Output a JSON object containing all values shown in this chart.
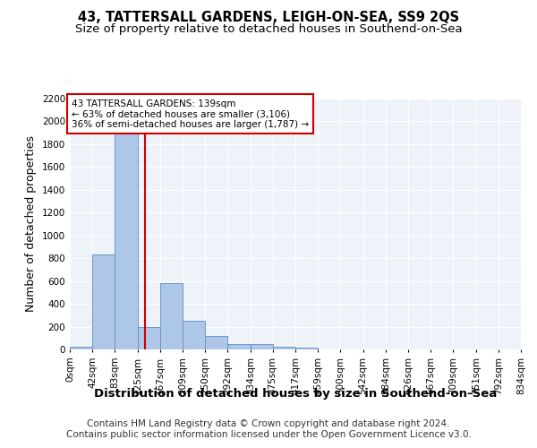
{
  "title": "43, TATTERSALL GARDENS, LEIGH-ON-SEA, SS9 2QS",
  "subtitle": "Size of property relative to detached houses in Southend-on-Sea",
  "xlabel": "Distribution of detached houses by size in Southend-on-Sea",
  "ylabel": "Number of detached properties",
  "footer_line1": "Contains HM Land Registry data © Crown copyright and database right 2024.",
  "footer_line2": "Contains public sector information licensed under the Open Government Licence v3.0.",
  "bin_edges": [
    0,
    42,
    83,
    125,
    167,
    209,
    250,
    292,
    334,
    375,
    417,
    459,
    500,
    542,
    584,
    626,
    667,
    709,
    751,
    792,
    834
  ],
  "bin_labels": [
    "0sqm",
    "42sqm",
    "83sqm",
    "125sqm",
    "167sqm",
    "209sqm",
    "250sqm",
    "292sqm",
    "334sqm",
    "375sqm",
    "417sqm",
    "459sqm",
    "500sqm",
    "542sqm",
    "584sqm",
    "626sqm",
    "667sqm",
    "709sqm",
    "751sqm",
    "792sqm",
    "834sqm"
  ],
  "bar_heights": [
    25,
    830,
    1950,
    200,
    585,
    255,
    120,
    50,
    45,
    25,
    15,
    0,
    0,
    0,
    0,
    0,
    0,
    0,
    0,
    0
  ],
  "bar_color": "#aec6e8",
  "bar_edge_color": "#5b8fc9",
  "property_line_x": 139,
  "property_line_color": "#cc0000",
  "annotation_text": "43 TATTERSALL GARDENS: 139sqm\n← 63% of detached houses are smaller (3,106)\n36% of semi-detached houses are larger (1,787) →",
  "annotation_box_color": "#cc0000",
  "annotation_text_color": "#000000",
  "ylim": [
    0,
    2200
  ],
  "yticks": [
    0,
    200,
    400,
    600,
    800,
    1000,
    1200,
    1400,
    1600,
    1800,
    2000,
    2200
  ],
  "bg_color": "#eef2f9",
  "grid_color": "#ffffff",
  "title_fontsize": 10.5,
  "subtitle_fontsize": 9.5,
  "ylabel_fontsize": 9,
  "xlabel_fontsize": 9.5,
  "tick_fontsize": 7.5,
  "footer_fontsize": 7.5,
  "annot_fontsize": 7.5
}
